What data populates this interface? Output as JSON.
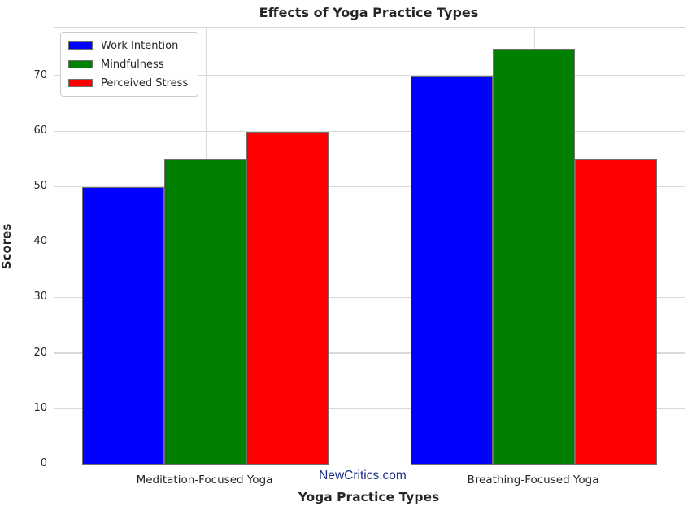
{
  "chart_data": {
    "type": "bar",
    "title": "Effects of Yoga Practice Types",
    "xlabel": "Yoga Practice Types",
    "ylabel": "Scores",
    "categories": [
      "Meditation-Focused Yoga",
      "Breathing-Focused Yoga"
    ],
    "series": [
      {
        "name": "Work Intention",
        "color": "#0000ff",
        "values": [
          50,
          70
        ]
      },
      {
        "name": "Mindfulness",
        "color": "#008000",
        "values": [
          55,
          75
        ]
      },
      {
        "name": "Perceived Stress",
        "color": "#ff0000",
        "values": [
          60,
          55
        ]
      }
    ],
    "yticks": [
      0,
      10,
      20,
      30,
      40,
      50,
      60,
      70
    ],
    "ylim": [
      0,
      78.75
    ],
    "grid": true,
    "legend_position": "upper left",
    "watermark": "NewCritics.com",
    "watermark_color": "#1b3084",
    "bar_edge_color": "#707070",
    "grid_color": "#d9d9d9",
    "text_color": "#262626",
    "background_color": "#ffffff"
  }
}
